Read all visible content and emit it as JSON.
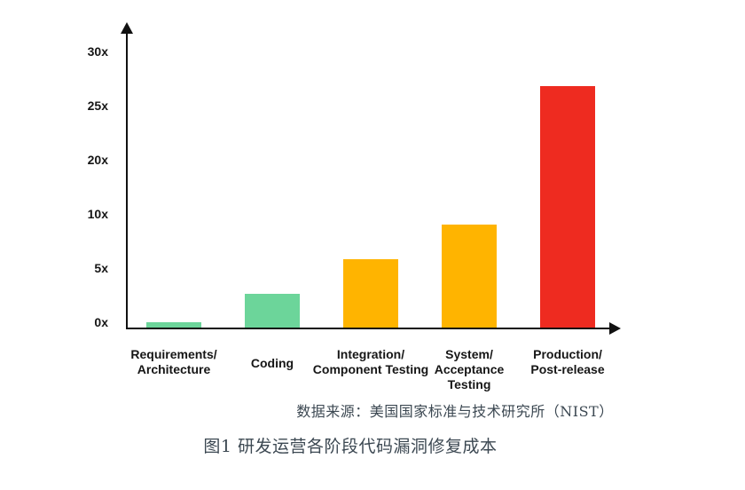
{
  "chart_data": {
    "type": "bar",
    "title": "",
    "xlabel": "",
    "ylabel": "",
    "categories": [
      {
        "lines": [
          "Requirements/",
          "Architecture"
        ]
      },
      {
        "lines": [
          "Coding"
        ]
      },
      {
        "lines": [
          "Integration/",
          "Component Testing"
        ]
      },
      {
        "lines": [
          "System/",
          "Acceptance",
          "Testing"
        ]
      },
      {
        "lines": [
          "Production/",
          "Post-release"
        ]
      }
    ],
    "values": [
      0.5,
      3.1,
      6.3,
      9.5,
      27.3
    ],
    "value_unit": "x",
    "bar_colors": [
      "#6CD59A",
      "#6CD59A",
      "#FFB400",
      "#FFB400",
      "#EE2B20"
    ],
    "y_axis": {
      "tick_labels": [
        "0x",
        "5x",
        "10x",
        "20x",
        "25x",
        "30x"
      ],
      "tick_values": [
        0,
        5,
        10,
        20,
        25,
        30
      ],
      "scale_note": "ticks evenly spaced (non-linear scale)"
    },
    "legend": null,
    "grid": false
  },
  "source_note": "数据来源：美国国家标准与技术研究所（NIST）",
  "caption": "图1 研发运营各阶段代码漏洞修复成本"
}
